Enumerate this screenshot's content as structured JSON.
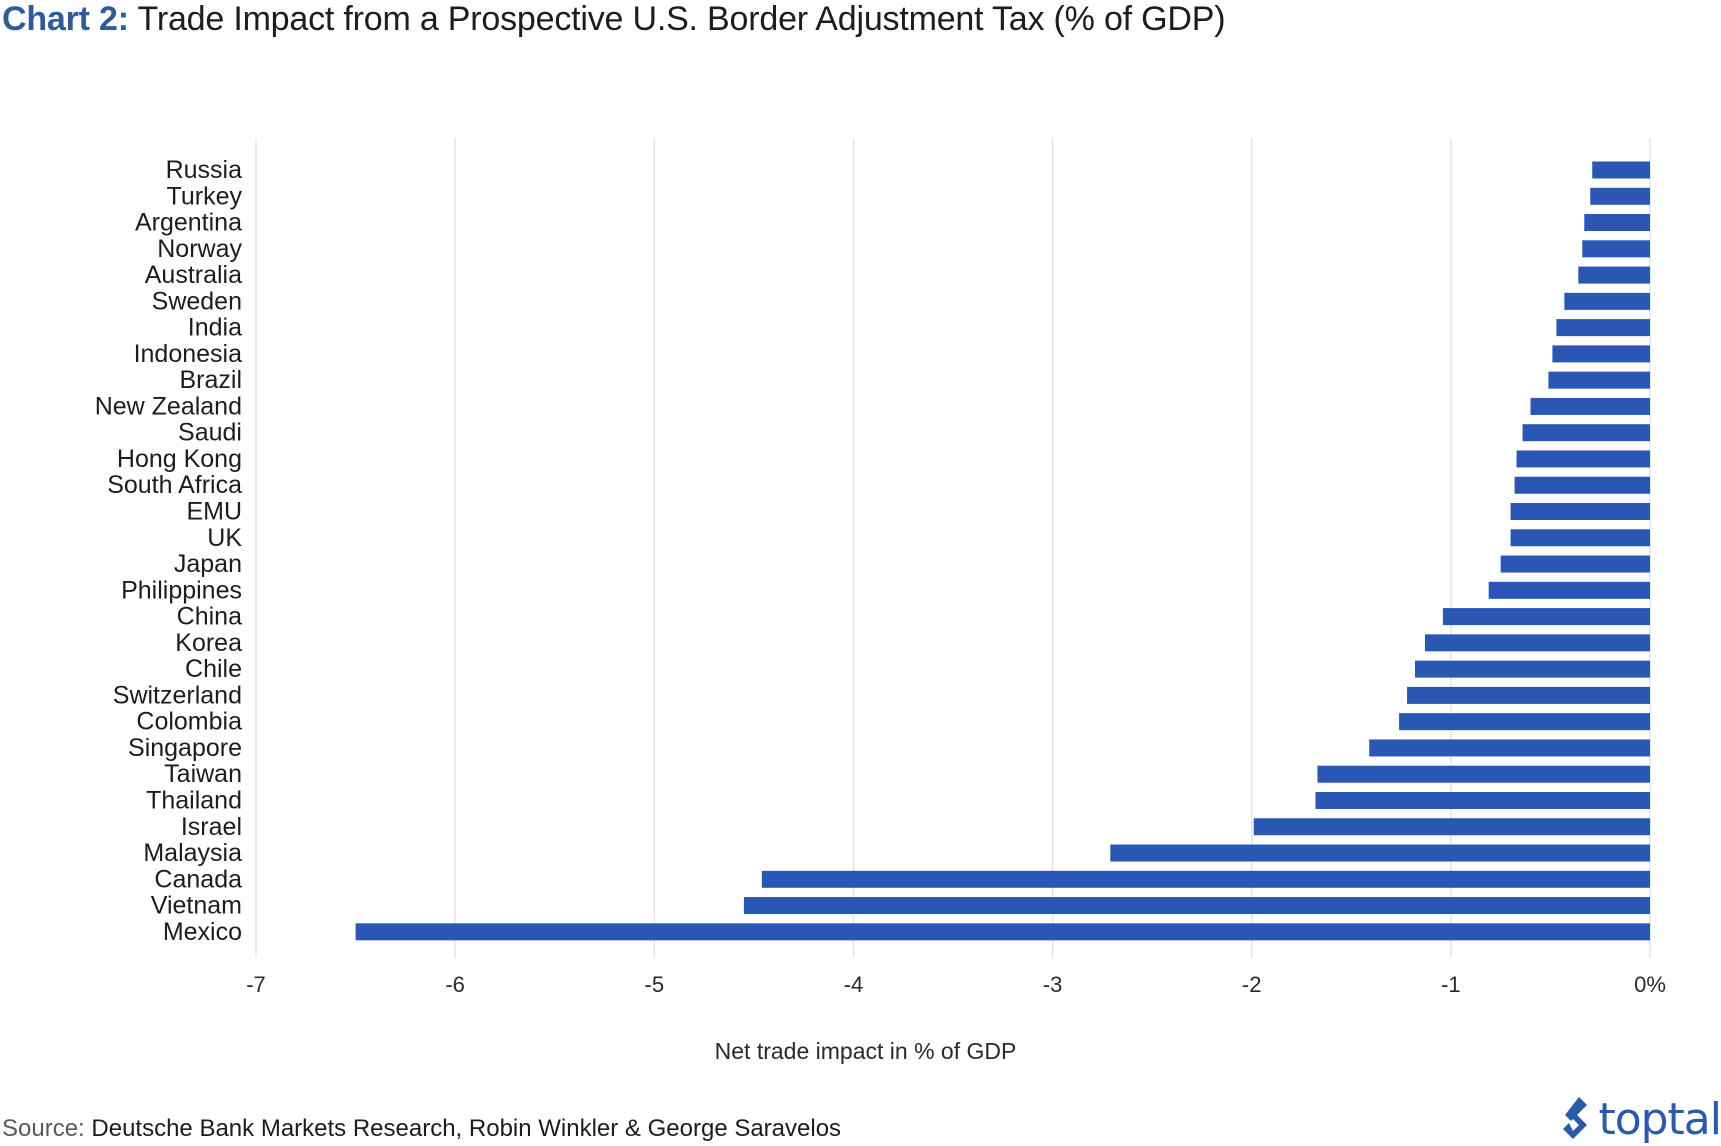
{
  "header": {
    "title_lead": "Chart 2:",
    "title_rest": "Trade Impact from a Prospective U.S. Border Adjustment Tax (% of GDP)"
  },
  "chart_data": {
    "type": "bar",
    "orientation": "horizontal",
    "title": "Chart 2: Trade Impact from a Prospective U.S. Border Adjustment Tax (% of GDP)",
    "xlabel": "Net trade impact in % of GDP",
    "ylabel": "",
    "xlim": [
      -7,
      0
    ],
    "x_ticks": [
      -7,
      -6,
      -5,
      -4,
      -3,
      -2,
      -1,
      0
    ],
    "x_tick_labels": [
      "-7",
      "-6",
      "-5",
      "-4",
      "-3",
      "-2",
      "-1",
      "0%"
    ],
    "grid": "vertical",
    "bar_color": "#2a56b4",
    "categories": [
      "Russia",
      "Turkey",
      "Argentina",
      "Norway",
      "Australia",
      "Sweden",
      "India",
      "Indonesia",
      "Brazil",
      "New Zealand",
      "Saudi",
      "Hong Kong",
      "South Africa",
      "EMU",
      "UK",
      "Japan",
      "Philippines",
      "China",
      "Korea",
      "Chile",
      "Switzerland",
      "Colombia",
      "Singapore",
      "Taiwan",
      "Thailand",
      "Israel",
      "Malaysia",
      "Canada",
      "Vietnam",
      "Mexico"
    ],
    "values": [
      -0.29,
      -0.3,
      -0.33,
      -0.34,
      -0.36,
      -0.43,
      -0.47,
      -0.49,
      -0.51,
      -0.6,
      -0.64,
      -0.67,
      -0.68,
      -0.7,
      -0.7,
      -0.75,
      -0.81,
      -1.04,
      -1.13,
      -1.18,
      -1.22,
      -1.26,
      -1.41,
      -1.67,
      -1.68,
      -1.99,
      -2.71,
      -4.46,
      -4.55,
      -6.5
    ]
  },
  "footer": {
    "source_label": "Source:",
    "source_text": "Deutsche Bank Markets Research, Robin Winkler & George Saravelos",
    "brand": "toptal"
  }
}
